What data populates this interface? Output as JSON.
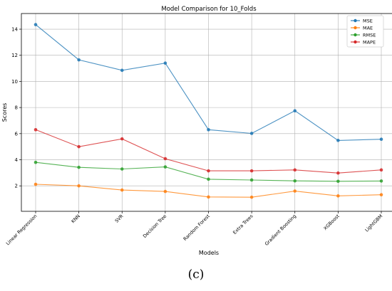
{
  "figure": {
    "panel_label": "(c)"
  },
  "chart_data": {
    "type": "line",
    "title": "Model Comparison for 10_Folds",
    "xlabel": "Models",
    "ylabel": "Scores",
    "categories": [
      "Linear Regression",
      "KNN",
      "SVR",
      "Decision Tree",
      "Random Forest",
      "Extra Trees",
      "Gradient Boosting",
      "XGBoost",
      "LightGBM"
    ],
    "ylim": [
      0.05,
      15.2
    ],
    "yticks": [
      2,
      4,
      6,
      8,
      10,
      12,
      14
    ],
    "grid": true,
    "legend_position": "top-right",
    "series": [
      {
        "name": "MSE",
        "color": "#1f77b4",
        "values": [
          14.35,
          11.65,
          10.85,
          11.4,
          6.3,
          6.02,
          7.75,
          5.48,
          5.57
        ]
      },
      {
        "name": "MAE",
        "color": "#ff7f0e",
        "values": [
          2.12,
          2.0,
          1.68,
          1.57,
          1.15,
          1.13,
          1.6,
          1.23,
          1.32
        ]
      },
      {
        "name": "RMSE",
        "color": "#2ca02c",
        "values": [
          3.8,
          3.42,
          3.29,
          3.45,
          2.51,
          2.45,
          2.38,
          2.35,
          2.37
        ]
      },
      {
        "name": "MAPE",
        "color": "#d62728",
        "values": [
          6.3,
          5.0,
          5.6,
          4.08,
          3.15,
          3.15,
          3.22,
          2.98,
          3.22
        ]
      }
    ]
  }
}
